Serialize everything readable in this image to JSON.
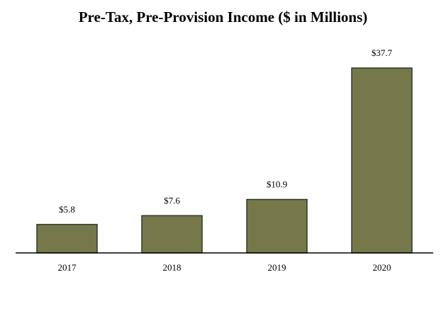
{
  "chart_data": {
    "type": "bar",
    "title": "Pre-Tax, Pre-Provision Income ($ in Millions)",
    "categories": [
      "2017",
      "2018",
      "2019",
      "2020"
    ],
    "values": [
      5.8,
      7.6,
      10.9,
      37.7
    ],
    "value_labels": [
      "$5.8",
      "$7.6",
      "$10.9",
      "$37.7"
    ],
    "xlabel": "",
    "ylabel": "",
    "ylim": [
      0,
      37.7
    ],
    "grid": false,
    "legend": "none",
    "colors": {
      "bar_fill": "#77784a",
      "bar_stroke": "#2a3a2a",
      "axis": "#000000"
    }
  }
}
